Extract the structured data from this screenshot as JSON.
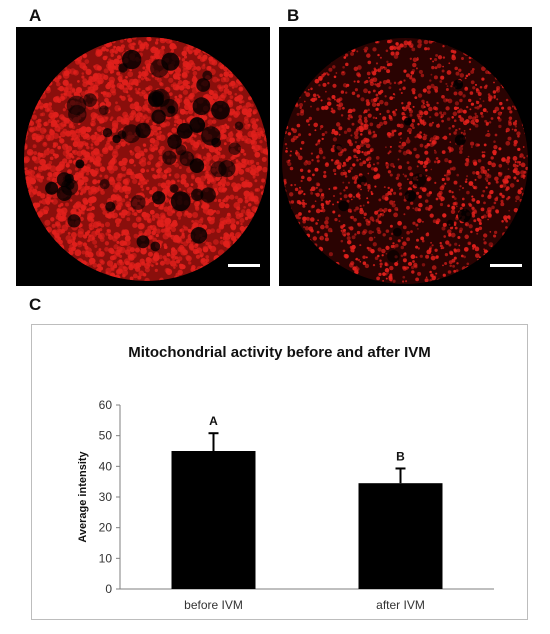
{
  "panels": {
    "a_label": "A",
    "b_label": "B",
    "c_label": "C"
  },
  "micrographs": {
    "a": {
      "signal_color": "#e0201c",
      "density": "high",
      "has_scale_bar": true
    },
    "b": {
      "signal_color": "#e0201c",
      "density": "low",
      "has_scale_bar": true
    }
  },
  "chart_data": {
    "type": "bar",
    "title": "Mitochondrial activity before and after IVM",
    "xlabel": "",
    "ylabel": "Average intensity",
    "categories": [
      "before IVM",
      "after IVM"
    ],
    "values": [
      45,
      34.5
    ],
    "error_bars": [
      5.8,
      4.8
    ],
    "significance_letters": [
      "A",
      "B"
    ],
    "ylim": [
      0,
      60
    ],
    "yticks": [
      0,
      10,
      20,
      30,
      40,
      50,
      60
    ],
    "grid": false,
    "legend": "none",
    "bar_color": "#000000"
  }
}
